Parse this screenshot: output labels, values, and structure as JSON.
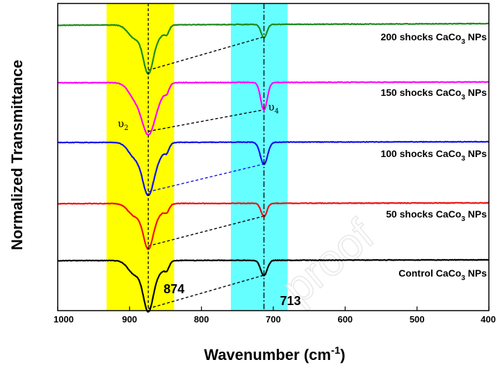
{
  "chart_data": {
    "type": "line",
    "xlabel": "Wavenumber (cm",
    "xlabel_sup": "-1",
    "xlabel_close": ")",
    "ylabel": "Normalized Transmittance",
    "xlim": [
      1000,
      400
    ],
    "x_ticks": [
      "1000",
      "900",
      "800",
      "700",
      "600",
      "500",
      "400"
    ],
    "highlight_bands": [
      {
        "from": 932,
        "to": 838,
        "color": "#ffff00"
      },
      {
        "from": 759,
        "to": 680,
        "color": "#66ffff"
      }
    ],
    "peak_lines": [
      874,
      713
    ],
    "peak_labels": [
      {
        "text": "874",
        "x": 874
      },
      {
        "text": "713",
        "x": 713
      }
    ],
    "mode_labels": [
      {
        "main": "υ",
        "sub": "2",
        "x": 874
      },
      {
        "main": "υ",
        "sub": "4",
        "x": 713
      }
    ],
    "series": [
      {
        "label": "200 shocks CaCo",
        "sub": "3",
        "tail": " NPs",
        "color": "#1a8a1a"
      },
      {
        "label": "150 shocks CaCo",
        "sub": "3",
        "tail": " NPs",
        "color": "#ff00ff"
      },
      {
        "label": "100 shocks CaCo",
        "sub": "3",
        "tail": " NPs",
        "color": "#1010ee"
      },
      {
        "label": "50 shocks CaCo",
        "sub": "3",
        "tail": " NPs",
        "color": "#ee1111"
      },
      {
        "label": "Control CaCo",
        "sub": "3",
        "tail": " NPs",
        "color": "#000000"
      }
    ],
    "watermark": "proof"
  }
}
